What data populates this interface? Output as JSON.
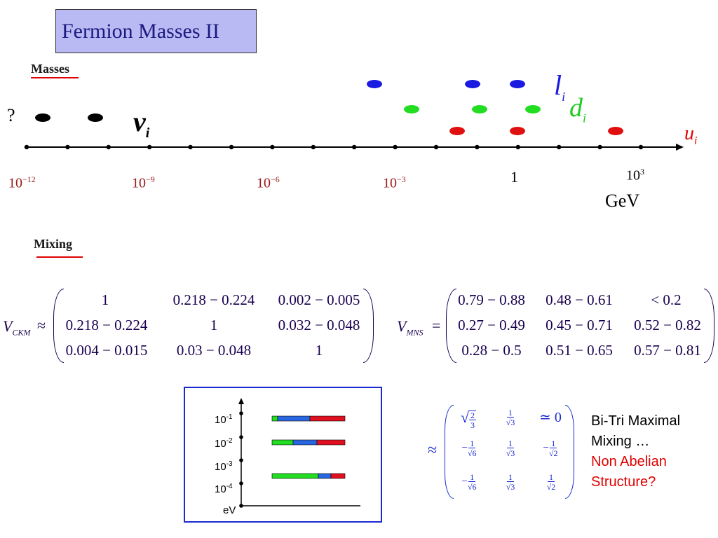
{
  "title": "Fermion Masses II",
  "masses_section": {
    "label": "Masses",
    "unknown_mark": "?",
    "neutrino_label": "ν",
    "neutrino_sub": "i",
    "lepton_label": "l",
    "lepton_sub": "i",
    "down_label": "d",
    "down_sub": "i",
    "up_label": "u",
    "up_sub": "i",
    "axis_labels": [
      {
        "base": "10",
        "exp": "−12"
      },
      {
        "base": "10",
        "exp": "−9"
      },
      {
        "base": "10",
        "exp": "−6"
      },
      {
        "base": "10",
        "exp": "−3"
      },
      {
        "base": "1",
        "exp": ""
      },
      {
        "base": "10",
        "exp": "3"
      }
    ],
    "unit": "GeV",
    "colors": {
      "neutrino": "#000000",
      "lepton": "#1a1ae0",
      "down": "#22dd22",
      "up": "#e01010"
    }
  },
  "mixing_section": {
    "label": "Mixing",
    "ckm": {
      "symbol": "V",
      "sub": "CKM",
      "op": "≈",
      "rows": [
        [
          "1",
          "0.218 − 0.224",
          "0.002 − 0.005"
        ],
        [
          "0.218 − 0.224",
          "1",
          "0.032 − 0.048"
        ],
        [
          "0.004 − 0.015",
          "0.03 − 0.048",
          "1"
        ]
      ]
    },
    "mns": {
      "symbol": "V",
      "sub": "MNS",
      "op": "=",
      "rows": [
        [
          "0.79 − 0.88",
          "0.48 − 0.61",
          "< 0.2"
        ],
        [
          "0.27 − 0.49",
          "0.45 − 0.71",
          "0.52 − 0.82"
        ],
        [
          "0.28 − 0.5",
          "0.51 − 0.65",
          "0.57 − 0.81"
        ]
      ]
    }
  },
  "inset": {
    "ticks": [
      {
        "base": "10",
        "exp": "-1"
      },
      {
        "base": "10",
        "exp": "-2"
      },
      {
        "base": "10",
        "exp": "-3"
      },
      {
        "base": "10",
        "exp": "-4"
      },
      {
        "base": "eV",
        "exp": ""
      }
    ]
  },
  "tbm": {
    "op": "≈",
    "approx_zero": "0",
    "approx_zero_prefix": "≃",
    "fractions": {
      "sqrt_two_thirds_num": "2",
      "sqrt_two_thirds_den": "3",
      "one": "1",
      "root3": "√3",
      "root6": "√6",
      "root2": "√2",
      "minus": "−"
    }
  },
  "annotation": {
    "line1": "Bi-Tri Maximal",
    "line2": "Mixing …",
    "line3": "Non Abelian",
    "line4": "Structure?",
    "color_black": "#000000",
    "color_red": "#e00000"
  }
}
